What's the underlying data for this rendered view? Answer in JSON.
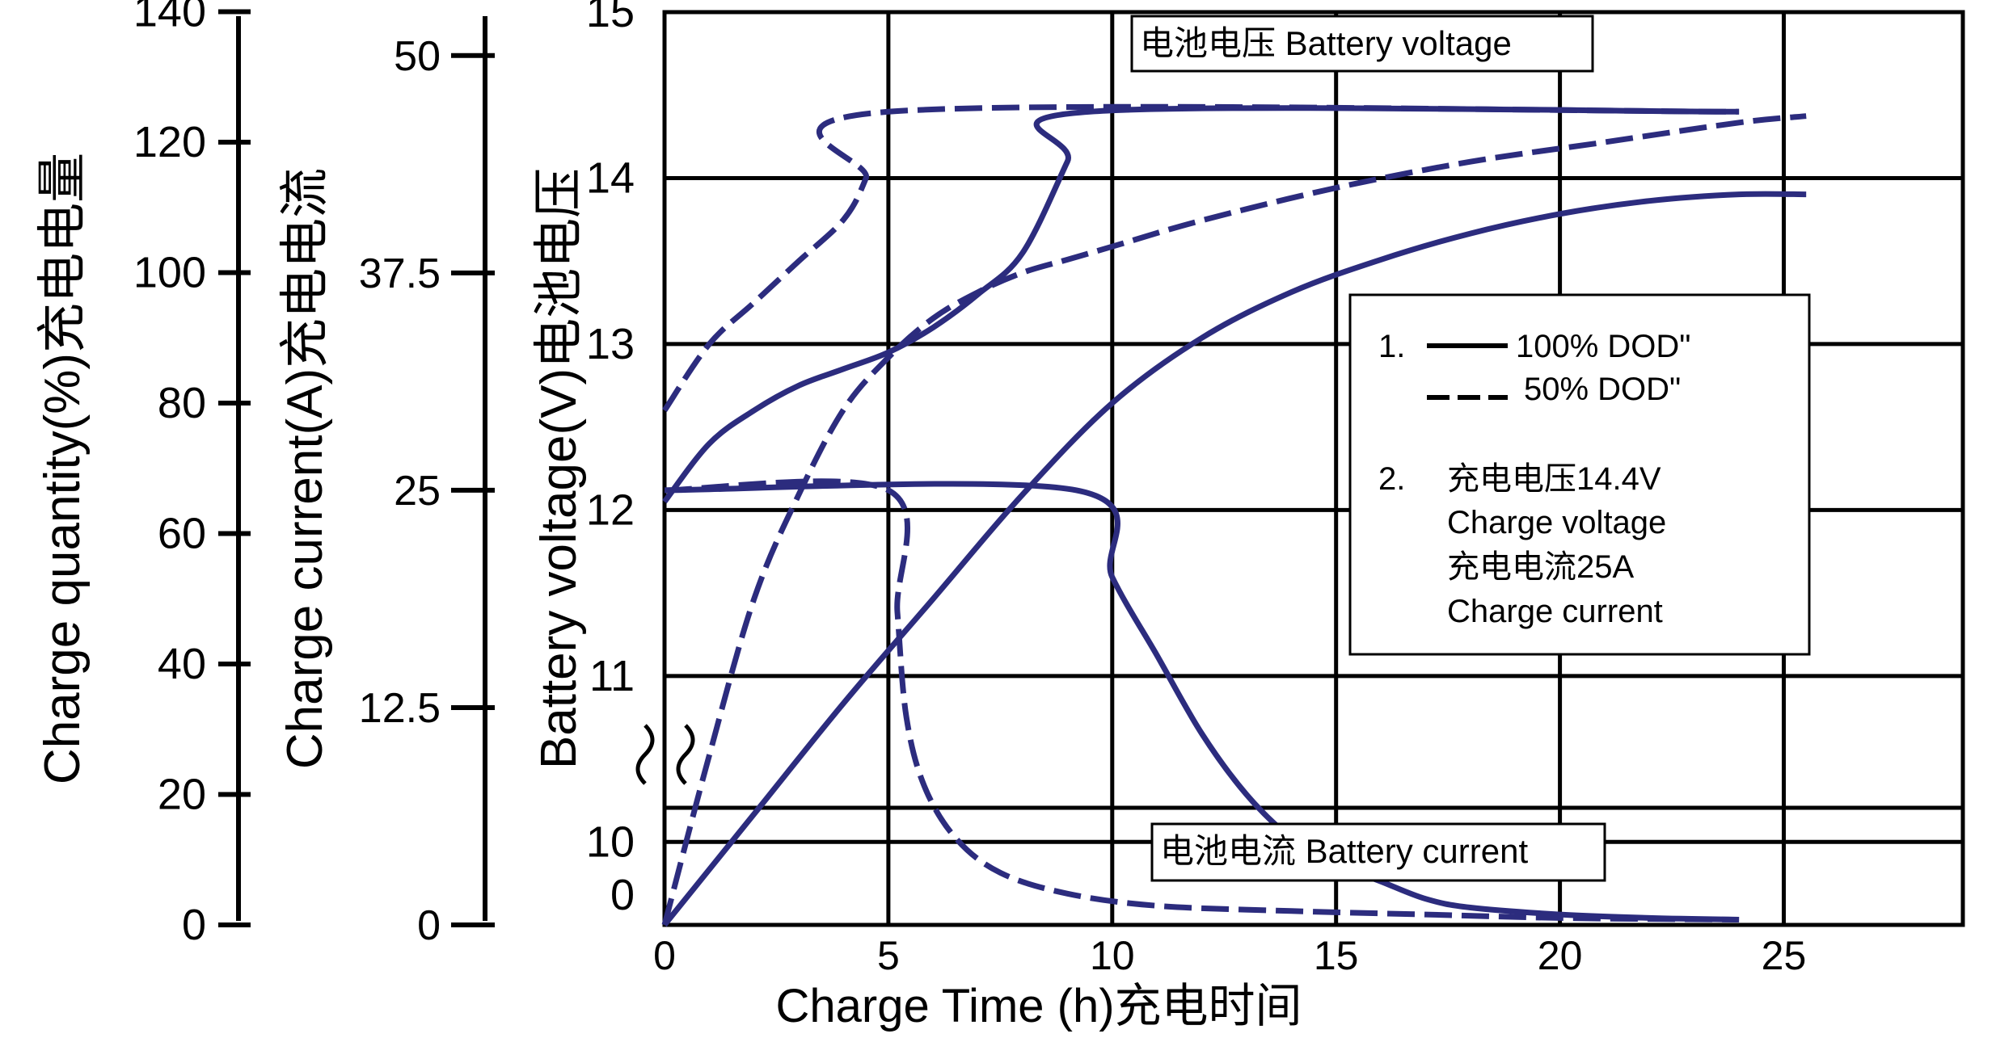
{
  "chart_data": {
    "type": "line",
    "xlabel": "Charge Time (h)充电时间",
    "x_ticks": [
      0,
      5,
      10,
      15,
      20,
      25
    ],
    "xlim": [
      0,
      29
    ],
    "axes": {
      "charge_quantity": {
        "label": "Charge quantity(%)充电电量",
        "ticks": [
          0,
          20,
          40,
          60,
          80,
          100,
          120,
          140
        ],
        "range": [
          0,
          140
        ]
      },
      "charge_current": {
        "label": "Charge current(A)充电电流",
        "ticks": [
          0,
          12.5,
          25,
          37.5,
          50
        ],
        "tick_labels": [
          "0",
          "12.5",
          "25",
          "37.5",
          "50"
        ],
        "range": [
          0,
          52.5
        ]
      },
      "battery_voltage": {
        "label": "Battery voltage(V)电池电压",
        "ticks": [
          0,
          10,
          11,
          12,
          13,
          14,
          15
        ],
        "range": [
          9.5,
          15
        ],
        "break_marker": true
      }
    },
    "annotations": {
      "voltage_box": "电池电压  Battery voltage",
      "current_box": "电池电流  Battery current"
    },
    "legend": {
      "item1_num": "1.",
      "solid_label": "100% DOD\"",
      "dashed_label": "50%  DOD\"",
      "item2_num": "2.",
      "line1": "充电电压14.4V",
      "line2": "Charge voltage",
      "line3": "充电电流25A",
      "line4": "Charge current",
      "placement": "right"
    },
    "series": [
      {
        "group": "voltage",
        "style": "solid",
        "axis": "battery_voltage",
        "x": [
          0,
          1,
          2,
          3,
          4,
          5,
          6,
          7,
          8,
          9,
          9.5,
          24
        ],
        "y": [
          12.05,
          12.4,
          12.6,
          12.75,
          12.85,
          12.95,
          13.1,
          13.3,
          13.55,
          14.1,
          14.4,
          14.4
        ]
      },
      {
        "group": "voltage",
        "style": "dashed",
        "axis": "battery_voltage",
        "x": [
          0,
          1,
          2,
          3,
          4,
          4.5,
          5,
          24
        ],
        "y": [
          12.6,
          13.0,
          13.25,
          13.5,
          13.75,
          14.0,
          14.4,
          14.4
        ]
      },
      {
        "group": "quantity",
        "style": "solid",
        "axis": "charge_quantity",
        "x": [
          0,
          2,
          4,
          6,
          8,
          10,
          12,
          14,
          16,
          18,
          20,
          22,
          24,
          25.5
        ],
        "y": [
          0,
          17,
          34,
          50,
          66,
          80,
          90,
          97,
          102,
          106,
          109,
          111,
          112,
          112
        ]
      },
      {
        "group": "quantity",
        "style": "dashed",
        "axis": "charge_quantity",
        "x": [
          0,
          1,
          2,
          3,
          4,
          5,
          6,
          7,
          8,
          9,
          10,
          12,
          15,
          18,
          21,
          24,
          25.5
        ],
        "y": [
          0,
          26,
          50,
          66,
          79,
          87,
          93,
          97,
          100,
          102,
          104,
          108,
          113,
          117,
          120,
          123,
          124
        ]
      },
      {
        "group": "current",
        "style": "solid",
        "axis": "charge_current",
        "x": [
          0,
          9.2,
          10,
          11,
          12,
          13,
          14,
          15,
          16,
          17,
          18,
          20,
          22,
          24
        ],
        "y": [
          25,
          25,
          20,
          15.5,
          11,
          7.5,
          5,
          3.5,
          2.5,
          1.5,
          1,
          0.6,
          0.4,
          0.3
        ]
      },
      {
        "group": "current",
        "style": "dashed",
        "axis": "charge_current",
        "x": [
          0,
          5,
          5.2,
          5.4,
          5.8,
          6.5,
          7.5,
          9,
          11,
          14,
          17,
          20,
          24
        ],
        "y": [
          25,
          25,
          18,
          12,
          8,
          5,
          3,
          1.8,
          1.1,
          0.8,
          0.6,
          0.4,
          0.3
        ]
      }
    ],
    "colors": {
      "series": "#2c2c7e",
      "grid": "#000000"
    }
  }
}
